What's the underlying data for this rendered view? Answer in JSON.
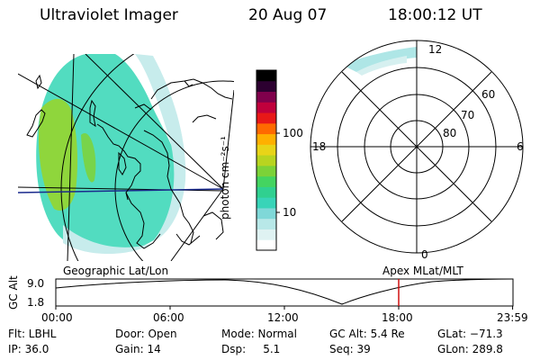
{
  "header": {
    "title": "Ultraviolet Imager",
    "date": "20 Aug 07",
    "time": "18:00:12 UT"
  },
  "colorbar": {
    "label": "photon cm⁻²s⁻¹",
    "ticks": [
      "100",
      "10"
    ],
    "colors": [
      "#ffffff",
      "#dff2f2",
      "#b8e8e8",
      "#7fd8d8",
      "#38d4b8",
      "#30d090",
      "#44d460",
      "#7cd238",
      "#b8d420",
      "#e8d418",
      "#ffb000",
      "#ff6a00",
      "#e81818",
      "#c0003c",
      "#80004c",
      "#2c0030",
      "#000000"
    ]
  },
  "polar": {
    "mlt_labels": [
      "12",
      "18",
      "6",
      "0"
    ],
    "lat_labels": [
      "60",
      "70",
      "80"
    ]
  },
  "map": {
    "left_label": "Geographic Lat/Lon",
    "right_label": "Apex  MLat/MLT"
  },
  "timeline": {
    "ylabel": "GC Alt",
    "yticks": [
      "9.0",
      "1.8"
    ],
    "xticks": [
      "00:00",
      "06:00",
      "12:00",
      "18:00",
      "23:59"
    ],
    "current_marker_hour": 18.0
  },
  "info": {
    "flt": "Flt: LBHL",
    "ip": "IP: 36.0",
    "door": "Door: Open",
    "gain": "Gain: 14",
    "mode": "Mode: Normal",
    "dsp": "Dsp:     5.1",
    "gcalt": "GC Alt: 5.4 Re",
    "seq": "Seq: 39",
    "glat": "GLat: −71.3",
    "glon": "GLon: 289.8"
  }
}
